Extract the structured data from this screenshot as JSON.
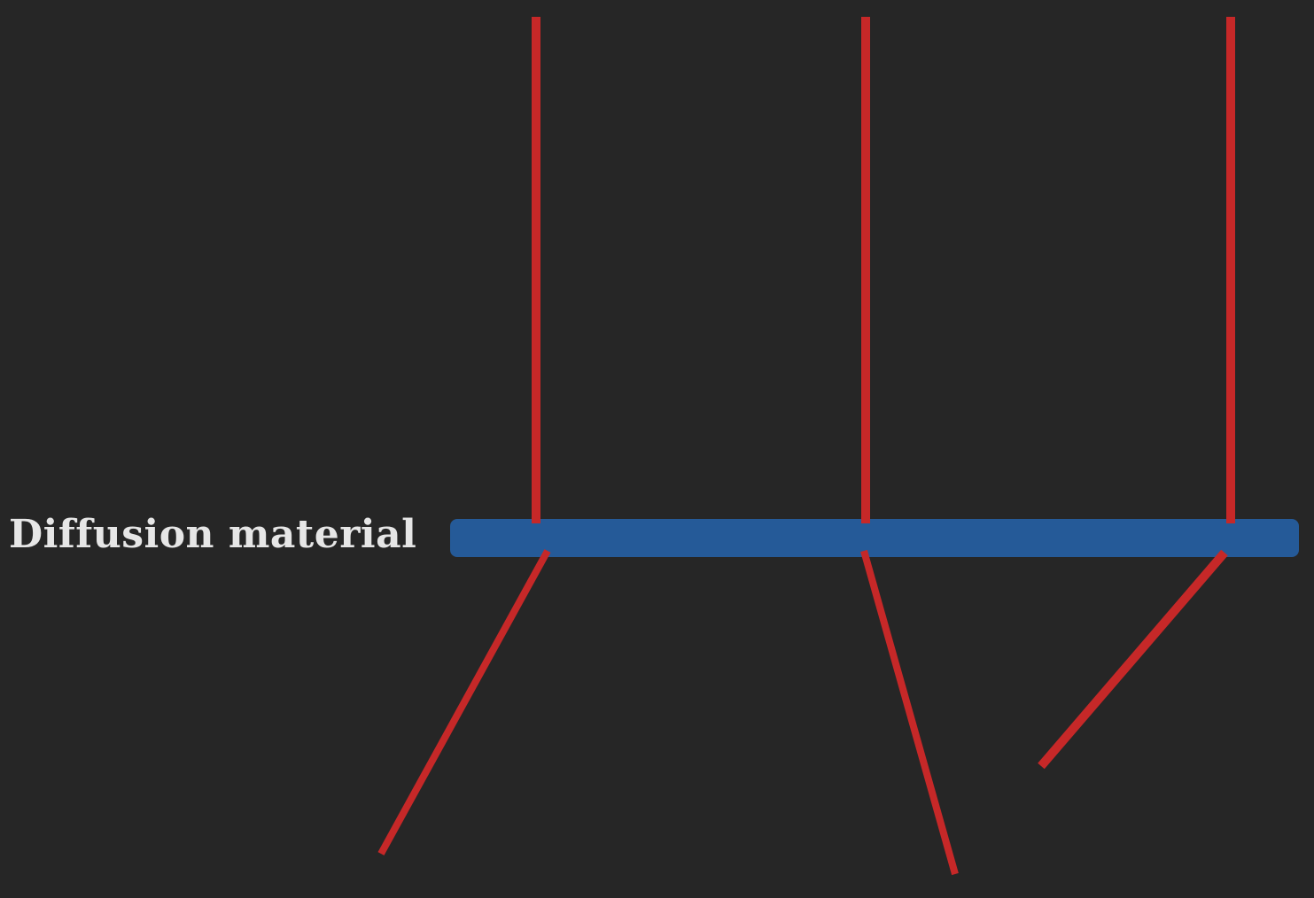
{
  "label": "Diffusion material",
  "colors": {
    "background": "#262626",
    "ray": "#c62828",
    "material": "#255a98",
    "label_text": "#e6e6e6"
  }
}
